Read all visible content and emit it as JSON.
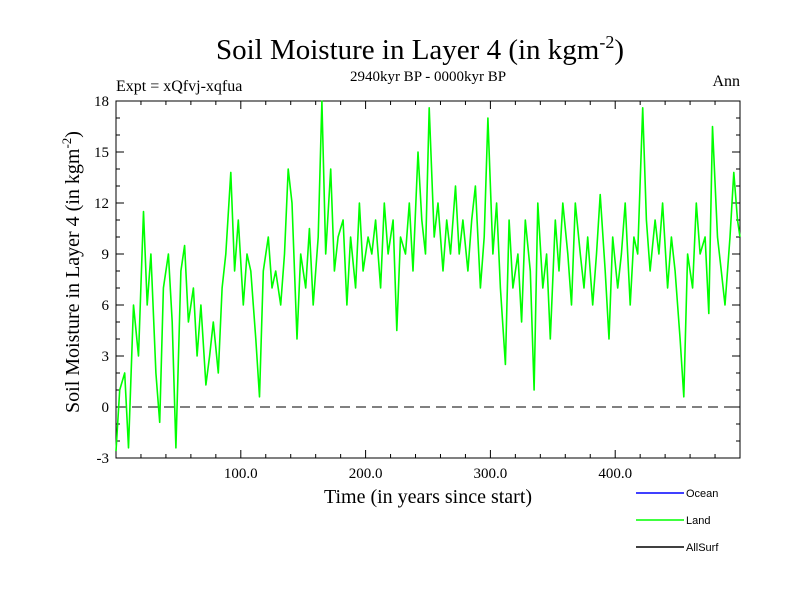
{
  "chart_data": {
    "type": "line",
    "title": "Soil Moisture in Layer 4 (in kgm",
    "title_superscript": "-2",
    "title_tail": ")",
    "subtitle": "2940kyr BP - 0000kyr BP",
    "expt_label": "Expt = xQfvj-xqfua",
    "season_label": "Ann",
    "xlabel": "Time (in years since start)",
    "ylabel": "Soil Moisture in Layer 4 (in kgm",
    "ylabel_superscript": "-2",
    "ylabel_tail": ")",
    "xlim": [
      0,
      500
    ],
    "ylim": [
      -3,
      18
    ],
    "xticks": [
      100,
      200,
      300,
      400
    ],
    "xtick_labels": [
      "100.0",
      "200.0",
      "300.0",
      "400.0"
    ],
    "yticks": [
      -3,
      0,
      3,
      6,
      9,
      12,
      15,
      18
    ],
    "ytick_labels": [
      "-3",
      "0",
      "3",
      "6",
      "9",
      "12",
      "15",
      "18"
    ],
    "zero_line": 0,
    "legend": [
      {
        "name": "Ocean",
        "color": "#0000ff"
      },
      {
        "name": "Land",
        "color": "#00ff00"
      },
      {
        "name": "AllSurf",
        "color": "#000000"
      }
    ],
    "series": [
      {
        "name": "Land",
        "color": "#00ff00",
        "x": [
          0,
          3,
          7,
          10,
          14,
          18,
          22,
          25,
          28,
          32,
          35,
          38,
          42,
          45,
          48,
          52,
          55,
          58,
          62,
          65,
          68,
          72,
          75,
          78,
          82,
          85,
          88,
          92,
          95,
          98,
          102,
          105,
          108,
          112,
          115,
          118,
          122,
          125,
          128,
          132,
          135,
          138,
          141,
          145,
          148,
          152,
          155,
          158,
          162,
          165,
          168,
          172,
          175,
          178,
          182,
          185,
          188,
          192,
          195,
          198,
          202,
          205,
          208,
          212,
          215,
          218,
          222,
          225,
          228,
          232,
          235,
          238,
          242,
          245,
          248,
          251,
          255,
          258,
          262,
          265,
          268,
          272,
          275,
          278,
          282,
          285,
          288,
          292,
          295,
          298,
          302,
          305,
          308,
          312,
          315,
          318,
          322,
          325,
          328,
          332,
          335,
          338,
          342,
          345,
          348,
          352,
          355,
          358,
          362,
          365,
          368,
          372,
          375,
          378,
          382,
          385,
          388,
          392,
          395,
          398,
          402,
          405,
          408,
          412,
          415,
          418,
          422,
          425,
          428,
          432,
          435,
          438,
          442,
          445,
          448,
          452,
          455,
          458,
          462,
          465,
          468,
          472,
          475,
          478,
          482,
          485,
          488,
          492,
          495,
          498,
          500
        ],
        "values": [
          -2.6,
          1.0,
          2.0,
          -2.4,
          6.0,
          3.0,
          11.5,
          6.0,
          9.0,
          2.0,
          -0.9,
          7.0,
          9.0,
          5.0,
          -2.4,
          8.0,
          9.5,
          5.0,
          7.0,
          3.0,
          6.0,
          1.3,
          3.0,
          5.0,
          2.0,
          7.0,
          9.0,
          13.8,
          8.0,
          11.0,
          6.0,
          9.0,
          8.0,
          4.0,
          0.6,
          8.0,
          10.0,
          7.0,
          8.0,
          6.0,
          9.0,
          14.0,
          12.0,
          4.0,
          9.0,
          7.0,
          10.5,
          6.0,
          10.0,
          18.0,
          9.0,
          14.0,
          8.0,
          10.0,
          11.0,
          6.0,
          10.0,
          7.0,
          12.0,
          8.0,
          10.0,
          9.0,
          11.0,
          7.0,
          12.0,
          9.0,
          11.0,
          4.5,
          10.0,
          9.0,
          12.0,
          8.0,
          15.0,
          11.0,
          9.0,
          17.6,
          10.0,
          12.0,
          8.0,
          11.0,
          9.0,
          13.0,
          9.0,
          11.0,
          8.0,
          11.0,
          13.0,
          7.0,
          10.0,
          17.0,
          9.0,
          12.0,
          7.0,
          2.5,
          11.0,
          7.0,
          9.0,
          5.0,
          11.0,
          8.0,
          1.0,
          12.0,
          7.0,
          9.0,
          4.0,
          11.0,
          8.0,
          12.0,
          9.0,
          6.0,
          12.0,
          9.0,
          7.0,
          10.0,
          6.0,
          9.0,
          12.5,
          8.0,
          4.0,
          10.0,
          7.0,
          9.0,
          12.0,
          6.0,
          10.0,
          9.0,
          17.6,
          11.0,
          8.0,
          11.0,
          9.0,
          12.0,
          7.0,
          10.0,
          8.0,
          4.0,
          0.6,
          9.0,
          7.0,
          12.0,
          9.0,
          10.0,
          5.5,
          16.5,
          10.0,
          8.0,
          6.0,
          10.0,
          13.8,
          11.0,
          10.0
        ]
      }
    ]
  }
}
